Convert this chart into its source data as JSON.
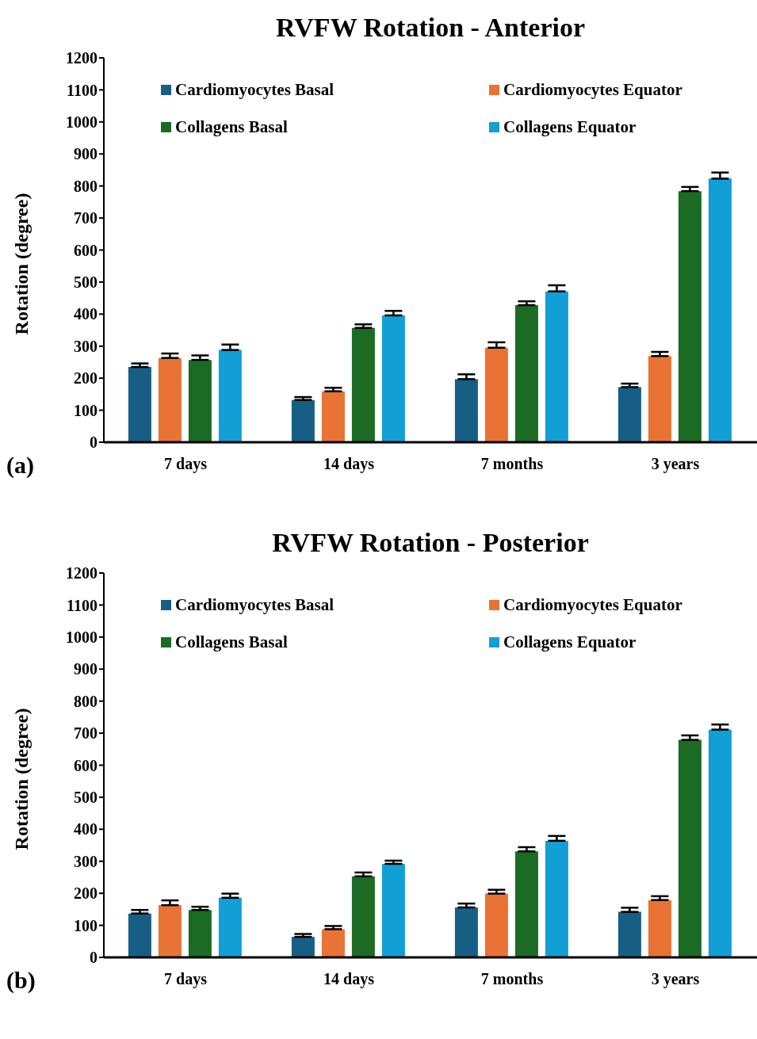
{
  "chart_data": [
    {
      "type": "bar",
      "title": "RVFW Rotation - Anterior",
      "ylabel": "Rotation (degree)",
      "annotations": [
        "(a)"
      ],
      "categories": [
        "7 days",
        "14  days",
        "7 months",
        "3 years"
      ],
      "ylim": [
        0,
        1200
      ],
      "yticks": [
        0,
        100,
        200,
        300,
        400,
        500,
        600,
        700,
        800,
        900,
        1000,
        1100,
        1200
      ],
      "legend": "top",
      "grid": false,
      "series": [
        {
          "name": "Cardiomyocytes Basal",
          "color": "#175e85",
          "values": [
            235,
            132,
            197,
            172
          ],
          "errors": [
            [
              235,
              246
            ],
            [
              132,
              141
            ],
            [
              197,
              212
            ],
            [
              172,
              183
            ]
          ]
        },
        {
          "name": "Cardiomyocytes Equator",
          "color": "#e87334",
          "values": [
            263,
            159,
            295,
            269
          ],
          "errors": [
            [
              263,
              277
            ],
            [
              159,
              170
            ],
            [
              295,
              312
            ],
            [
              269,
              282
            ]
          ]
        },
        {
          "name": "Collagens Basal",
          "color": "#1b6b24",
          "values": [
            257,
            357,
            428,
            784
          ],
          "errors": [
            [
              257,
              271
            ],
            [
              357,
              368
            ],
            [
              428,
              440
            ],
            [
              784,
              797
            ]
          ]
        },
        {
          "name": "Collagens Equator",
          "color": "#119fd6",
          "values": [
            288,
            396,
            471,
            823
          ],
          "errors": [
            [
              288,
              305
            ],
            [
              396,
              410
            ],
            [
              471,
              490
            ],
            [
              823,
              842
            ]
          ]
        }
      ]
    },
    {
      "type": "bar",
      "title": "RVFW Rotation - Posterior",
      "ylabel": "Rotation (degree)",
      "annotations": [
        "(b)"
      ],
      "categories": [
        "7 days",
        "14  days",
        "7 months",
        "3 years"
      ],
      "ylim": [
        0,
        1200
      ],
      "yticks": [
        0,
        100,
        200,
        300,
        400,
        500,
        600,
        700,
        800,
        900,
        1000,
        1100,
        1200
      ],
      "legend": "top",
      "grid": false,
      "series": [
        {
          "name": "Cardiomyocytes Basal",
          "color": "#175e85",
          "values": [
            137,
            64,
            156,
            142
          ],
          "errors": [
            [
              137,
              148
            ],
            [
              64,
              73
            ],
            [
              156,
              168
            ],
            [
              142,
              155
            ]
          ]
        },
        {
          "name": "Cardiomyocytes Equator",
          "color": "#e87334",
          "values": [
            163,
            88,
            199,
            179
          ],
          "errors": [
            [
              163,
              178
            ],
            [
              88,
              98
            ],
            [
              199,
              211
            ],
            [
              179,
              191
            ]
          ]
        },
        {
          "name": "Collagens Basal",
          "color": "#1b6b24",
          "values": [
            148,
            253,
            331,
            679
          ],
          "errors": [
            [
              148,
              158
            ],
            [
              253,
              265
            ],
            [
              331,
              344
            ],
            [
              679,
              693
            ]
          ]
        },
        {
          "name": "Collagens Equator",
          "color": "#119fd6",
          "values": [
            186,
            292,
            364,
            711
          ],
          "errors": [
            [
              186,
              199
            ],
            [
              292,
              302
            ],
            [
              364,
              379
            ],
            [
              711,
              727
            ]
          ]
        }
      ]
    }
  ]
}
